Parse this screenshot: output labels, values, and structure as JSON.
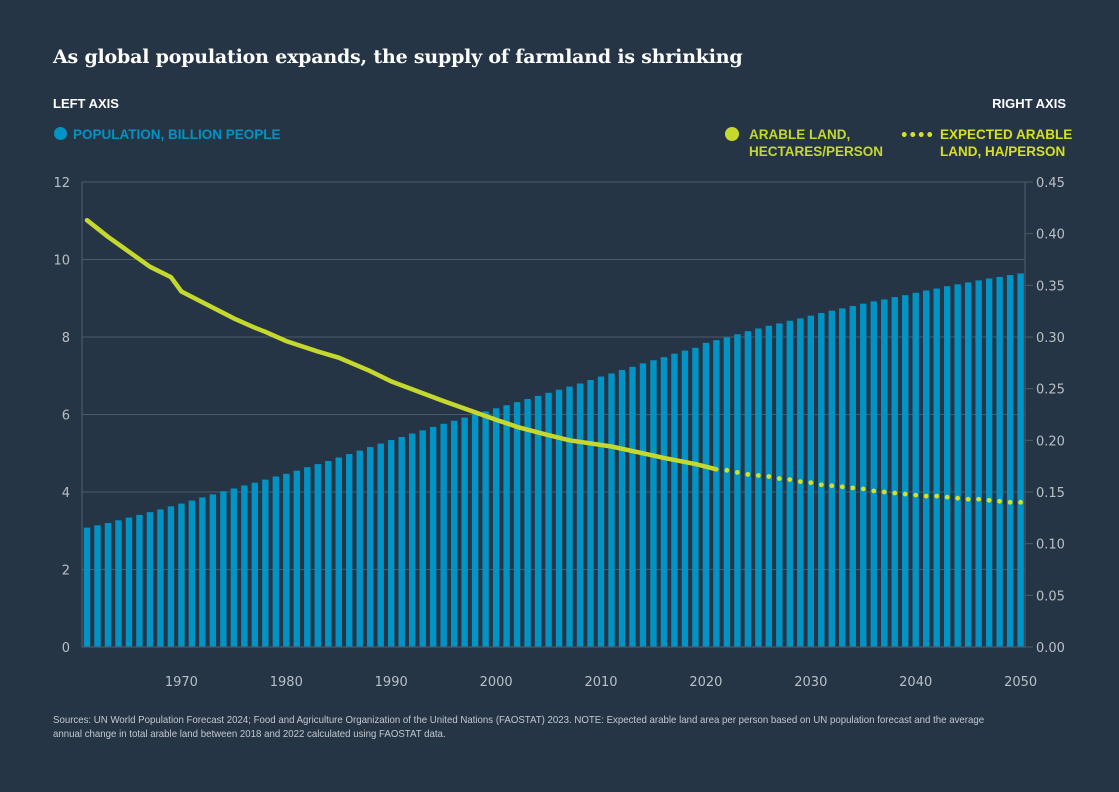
{
  "chart_data": {
    "type": "bar+line",
    "title": "As global population expands, the supply of farmland is shrinking",
    "left_axis_heading": "LEFT AXIS",
    "right_axis_heading": "RIGHT AXIS",
    "legend": {
      "population": "POPULATION, BILLION PEOPLE",
      "arable_line1": "ARABLE LAND,",
      "arable_line2": "HECTARES/PERSON",
      "expected_line1": "EXPECTED ARABLE",
      "expected_line2": "LAND, HA/PERSON"
    },
    "colors": {
      "population": "#0093c6",
      "arable": "#c4d82e",
      "expected": "#d6e022",
      "background": "#263545",
      "grid": "#4a5a6b"
    },
    "grid": true,
    "x_ticks": [
      "1970",
      "1980",
      "1990",
      "2000",
      "2010",
      "2020",
      "2030",
      "2040",
      "2050"
    ],
    "y_left": {
      "lim": [
        0,
        12
      ],
      "ticks": [
        "0",
        "2",
        "4",
        "6",
        "8",
        "10",
        "12"
      ]
    },
    "y_right": {
      "lim": [
        0,
        0.45
      ],
      "ticks": [
        "0.00",
        "0.05",
        "0.10",
        "0.15",
        "0.20",
        "0.25",
        "0.30",
        "0.35",
        "0.40",
        "0.45"
      ]
    },
    "population": {
      "axis": "left",
      "years_start": 1961,
      "years_end": 2050,
      "values": [
        3.08,
        3.14,
        3.2,
        3.27,
        3.34,
        3.41,
        3.48,
        3.55,
        3.63,
        3.7,
        3.78,
        3.86,
        3.94,
        4.02,
        4.09,
        4.17,
        4.24,
        4.32,
        4.4,
        4.47,
        4.55,
        4.64,
        4.72,
        4.8,
        4.89,
        4.98,
        5.07,
        5.16,
        5.25,
        5.34,
        5.42,
        5.51,
        5.59,
        5.68,
        5.76,
        5.84,
        5.92,
        6.0,
        6.08,
        6.16,
        6.24,
        6.32,
        6.4,
        6.48,
        6.56,
        6.64,
        6.72,
        6.8,
        6.89,
        6.98,
        7.06,
        7.15,
        7.23,
        7.32,
        7.4,
        7.48,
        7.57,
        7.65,
        7.72,
        7.85,
        7.92,
        7.99,
        8.07,
        8.15,
        8.22,
        8.29,
        8.35,
        8.42,
        8.48,
        8.55,
        8.62,
        8.68,
        8.74,
        8.8,
        8.86,
        8.92,
        8.97,
        9.03,
        9.08,
        9.14,
        9.2,
        9.25,
        9.31,
        9.36,
        9.41,
        9.46,
        9.51,
        9.55,
        9.6,
        9.64
      ]
    },
    "arable_land": {
      "axis": "right",
      "x": [
        1961,
        1963,
        1967,
        1969,
        1970,
        1975,
        1977,
        1978,
        1980,
        1983,
        1985,
        1988,
        1990,
        1995,
        2000,
        2002,
        2005,
        2007,
        2011,
        2016,
        2019,
        2021
      ],
      "y": [
        0.413,
        0.397,
        0.368,
        0.358,
        0.344,
        0.318,
        0.309,
        0.305,
        0.296,
        0.286,
        0.28,
        0.267,
        0.257,
        0.238,
        0.22,
        0.213,
        0.205,
        0.2,
        0.194,
        0.183,
        0.177,
        0.172
      ]
    },
    "expected_arable_land": {
      "axis": "right",
      "years_start": 2022,
      "years_end": 2050,
      "values": [
        0.171,
        0.169,
        0.167,
        0.166,
        0.165,
        0.163,
        0.162,
        0.16,
        0.159,
        0.157,
        0.156,
        0.155,
        0.154,
        0.153,
        0.151,
        0.15,
        0.149,
        0.148,
        0.147,
        0.146,
        0.146,
        0.145,
        0.144,
        0.143,
        0.143,
        0.142,
        0.141,
        0.14,
        0.14
      ]
    },
    "source": "Sources: UN World Population Forecast 2024; Food and Agriculture Organization of the United Nations (FAOSTAT) 2023. NOTE: Expected arable land area per person based on UN population forecast and the average annual change in total arable land between 2018 and 2022 calculated using FAOSTAT data."
  }
}
